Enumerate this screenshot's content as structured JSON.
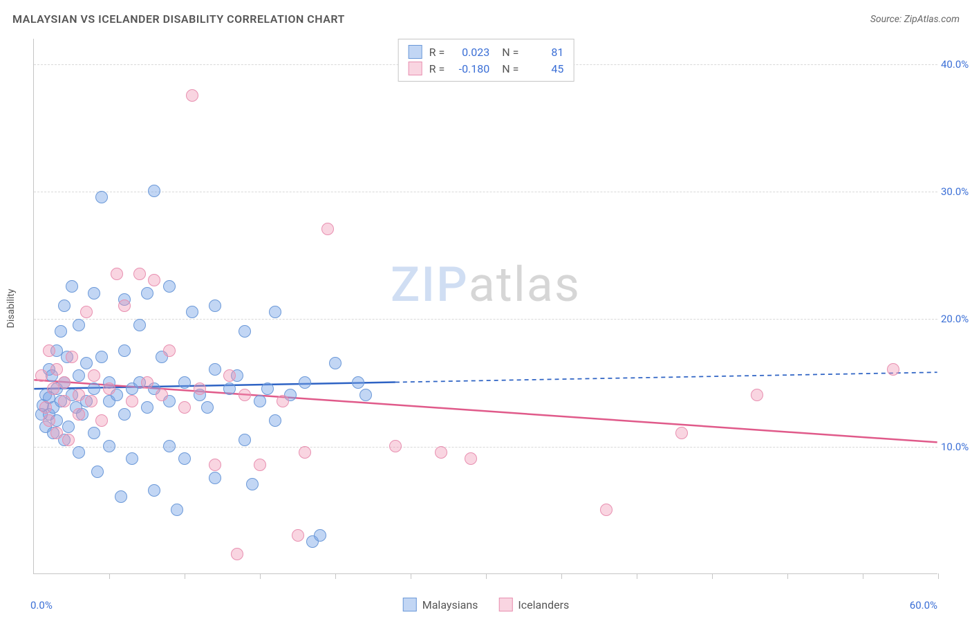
{
  "header": {
    "title": "MALAYSIAN VS ICELANDER DISABILITY CORRELATION CHART",
    "source": "Source: ZipAtlas.com"
  },
  "watermark": {
    "part1": "ZIP",
    "part2": "atlas"
  },
  "y_axis_label": "Disability",
  "chart": {
    "type": "scatter",
    "xlim": [
      0,
      60
    ],
    "ylim": [
      0,
      42
    ],
    "x_tick_positions": [
      0,
      5,
      10,
      15,
      20,
      25,
      30,
      35,
      40,
      45,
      50,
      55,
      60
    ],
    "y_ticks": [
      10,
      20,
      30,
      40
    ],
    "y_tick_labels": [
      "10.0%",
      "20.0%",
      "30.0%",
      "40.0%"
    ],
    "x_min_label": "0.0%",
    "x_max_label": "60.0%",
    "background_color": "#ffffff",
    "grid_color": "#d8d8d8",
    "axis_color": "#c5c5c5",
    "marker_radius": 9,
    "marker_stroke_width": 1.5,
    "watermark_color_zip": "rgba(120,160,220,0.35)",
    "watermark_color_atlas": "rgba(120,120,120,0.3)"
  },
  "series": [
    {
      "name": "Malaysians",
      "fill_color": "rgba(120,165,230,0.45)",
      "stroke_color": "#6a98d8",
      "R": "0.023",
      "N": "81",
      "trend": {
        "y_at_x0": 14.5,
        "y_at_x60": 15.8,
        "solid_until_x": 24,
        "color": "#2e63c4",
        "width": 2.5
      },
      "points": [
        [
          0.5,
          12.5
        ],
        [
          0.6,
          13.2
        ],
        [
          0.8,
          11.5
        ],
        [
          0.8,
          14.0
        ],
        [
          1.0,
          16.0
        ],
        [
          1.0,
          12.5
        ],
        [
          1.0,
          13.8
        ],
        [
          1.2,
          15.5
        ],
        [
          1.3,
          11.0
        ],
        [
          1.3,
          13.0
        ],
        [
          1.5,
          17.5
        ],
        [
          1.5,
          14.5
        ],
        [
          1.5,
          12.0
        ],
        [
          1.8,
          19.0
        ],
        [
          1.8,
          13.5
        ],
        [
          2.0,
          21.0
        ],
        [
          2.0,
          15.0
        ],
        [
          2.0,
          10.5
        ],
        [
          2.2,
          17.0
        ],
        [
          2.3,
          11.5
        ],
        [
          2.5,
          22.5
        ],
        [
          2.5,
          14.0
        ],
        [
          2.8,
          13.0
        ],
        [
          3.0,
          19.5
        ],
        [
          3.0,
          15.5
        ],
        [
          3.0,
          9.5
        ],
        [
          3.2,
          12.5
        ],
        [
          3.5,
          16.5
        ],
        [
          3.5,
          13.5
        ],
        [
          4.0,
          14.5
        ],
        [
          4.0,
          22.0
        ],
        [
          4.0,
          11.0
        ],
        [
          4.2,
          8.0
        ],
        [
          4.5,
          29.5
        ],
        [
          4.5,
          17.0
        ],
        [
          5.0,
          13.5
        ],
        [
          5.0,
          15.0
        ],
        [
          5.0,
          10.0
        ],
        [
          5.5,
          14.0
        ],
        [
          5.8,
          6.0
        ],
        [
          6.0,
          21.5
        ],
        [
          6.0,
          17.5
        ],
        [
          6.0,
          12.5
        ],
        [
          6.5,
          14.5
        ],
        [
          6.5,
          9.0
        ],
        [
          7.0,
          19.5
        ],
        [
          7.0,
          15.0
        ],
        [
          7.5,
          22.0
        ],
        [
          7.5,
          13.0
        ],
        [
          8.0,
          30.0
        ],
        [
          8.0,
          14.5
        ],
        [
          8.0,
          6.5
        ],
        [
          8.5,
          17.0
        ],
        [
          9.0,
          22.5
        ],
        [
          9.0,
          13.5
        ],
        [
          9.0,
          10.0
        ],
        [
          9.5,
          5.0
        ],
        [
          10.0,
          15.0
        ],
        [
          10.0,
          9.0
        ],
        [
          10.5,
          20.5
        ],
        [
          11.0,
          14.0
        ],
        [
          11.5,
          13.0
        ],
        [
          12.0,
          21.0
        ],
        [
          12.0,
          16.0
        ],
        [
          12.0,
          7.5
        ],
        [
          13.0,
          14.5
        ],
        [
          13.5,
          15.5
        ],
        [
          14.0,
          19.0
        ],
        [
          14.0,
          10.5
        ],
        [
          14.5,
          7.0
        ],
        [
          15.0,
          13.5
        ],
        [
          15.5,
          14.5
        ],
        [
          16.0,
          20.5
        ],
        [
          16.0,
          12.0
        ],
        [
          17.0,
          14.0
        ],
        [
          18.0,
          15.0
        ],
        [
          18.5,
          2.5
        ],
        [
          19.0,
          3.0
        ],
        [
          20.0,
          16.5
        ],
        [
          21.5,
          15.0
        ],
        [
          22.0,
          14.0
        ]
      ]
    },
    {
      "name": "Icelanders",
      "fill_color": "rgba(240,150,180,0.4)",
      "stroke_color": "#e88fb0",
      "R": "-0.180",
      "N": "45",
      "trend": {
        "y_at_x0": 15.2,
        "y_at_x60": 10.3,
        "solid_until_x": 60,
        "color": "#e05a8a",
        "width": 2.5
      },
      "points": [
        [
          0.5,
          15.5
        ],
        [
          0.8,
          13.0
        ],
        [
          1.0,
          17.5
        ],
        [
          1.0,
          12.0
        ],
        [
          1.3,
          14.5
        ],
        [
          1.5,
          16.0
        ],
        [
          1.5,
          11.0
        ],
        [
          2.0,
          13.5
        ],
        [
          2.0,
          15.0
        ],
        [
          2.3,
          10.5
        ],
        [
          2.5,
          17.0
        ],
        [
          3.0,
          12.5
        ],
        [
          3.0,
          14.0
        ],
        [
          3.5,
          20.5
        ],
        [
          3.8,
          13.5
        ],
        [
          4.0,
          15.5
        ],
        [
          4.5,
          12.0
        ],
        [
          5.0,
          14.5
        ],
        [
          5.5,
          23.5
        ],
        [
          6.0,
          21.0
        ],
        [
          6.5,
          13.5
        ],
        [
          7.0,
          23.5
        ],
        [
          7.5,
          15.0
        ],
        [
          8.0,
          23.0
        ],
        [
          8.5,
          14.0
        ],
        [
          9.0,
          17.5
        ],
        [
          10.0,
          13.0
        ],
        [
          10.5,
          37.5
        ],
        [
          11.0,
          14.5
        ],
        [
          12.0,
          8.5
        ],
        [
          13.0,
          15.5
        ],
        [
          13.5,
          1.5
        ],
        [
          14.0,
          14.0
        ],
        [
          15.0,
          8.5
        ],
        [
          16.5,
          13.5
        ],
        [
          17.5,
          3.0
        ],
        [
          18.0,
          9.5
        ],
        [
          19.5,
          27.0
        ],
        [
          24.0,
          10.0
        ],
        [
          27.0,
          9.5
        ],
        [
          29.0,
          9.0
        ],
        [
          38.0,
          5.0
        ],
        [
          43.0,
          11.0
        ],
        [
          48.0,
          14.0
        ],
        [
          57.0,
          16.0
        ]
      ]
    }
  ],
  "legend_bottom": [
    {
      "label": "Malaysians",
      "series_idx": 0
    },
    {
      "label": "Icelanders",
      "series_idx": 1
    }
  ]
}
